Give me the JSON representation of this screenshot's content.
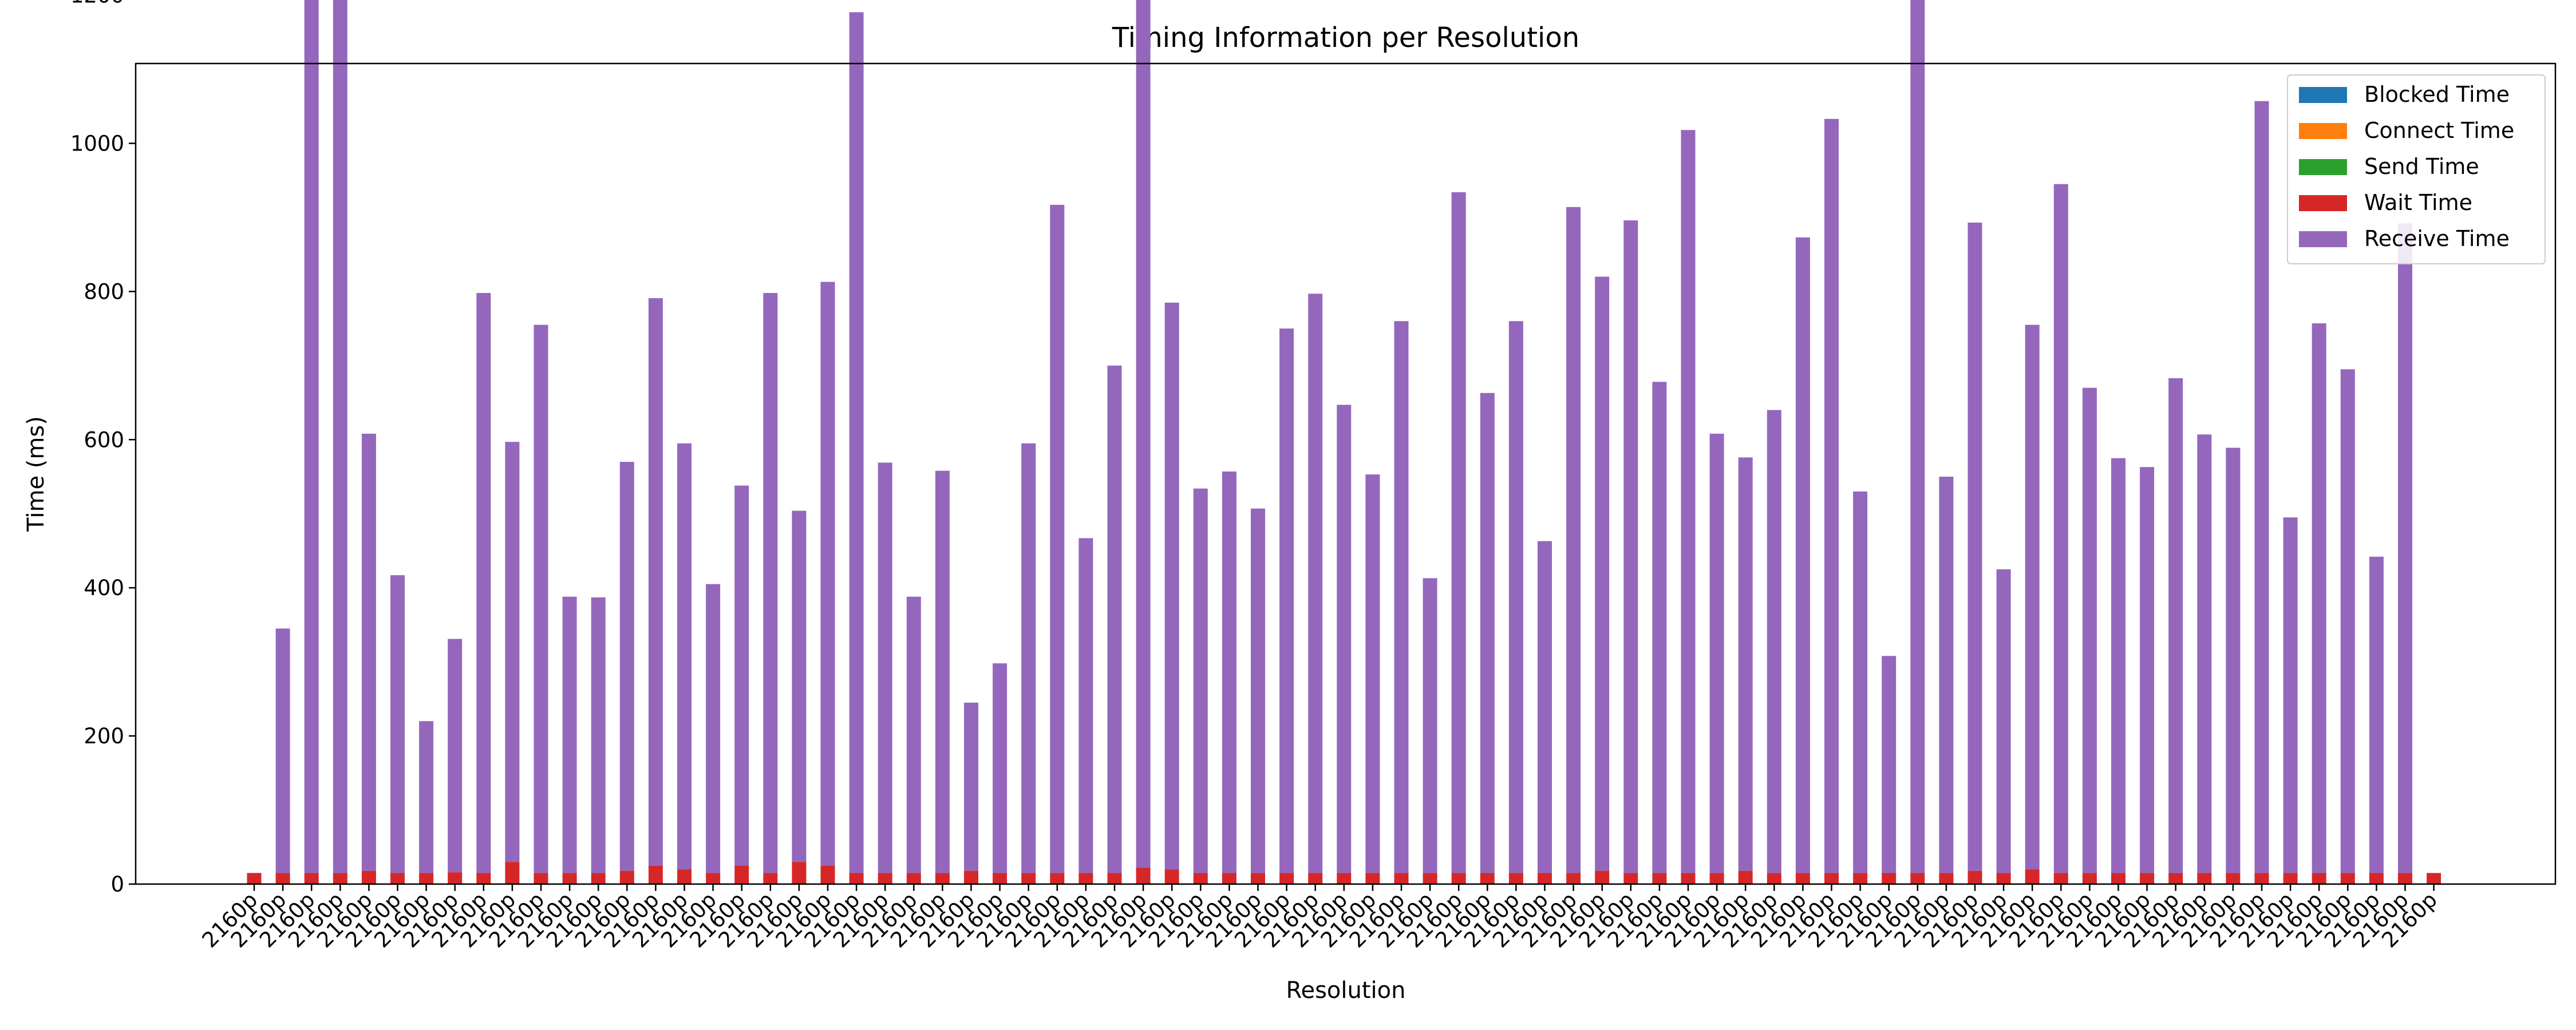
{
  "chart_data": {
    "type": "bar",
    "stacked": true,
    "title": "Timing Information per Resolution",
    "xlabel": "Resolution",
    "ylabel": "Time (ms)",
    "ylim": [
      0,
      1550
    ],
    "yticks": [
      0,
      200,
      400,
      600,
      800,
      1000,
      1200,
      1400
    ],
    "legend_position": "top-right",
    "grid": false,
    "categories": [
      "2160p",
      "2160p",
      "2160p",
      "2160p",
      "2160p",
      "2160p",
      "2160p",
      "2160p",
      "2160p",
      "2160p",
      "2160p",
      "2160p",
      "2160p",
      "2160p",
      "2160p",
      "2160p",
      "2160p",
      "2160p",
      "2160p",
      "2160p",
      "2160p",
      "2160p",
      "2160p",
      "2160p",
      "2160p",
      "2160p",
      "2160p",
      "2160p",
      "2160p",
      "2160p",
      "2160p",
      "2160p",
      "2160p",
      "2160p",
      "2160p",
      "2160p",
      "2160p",
      "2160p",
      "2160p",
      "2160p",
      "2160p",
      "2160p",
      "2160p",
      "2160p",
      "2160p",
      "2160p",
      "2160p",
      "2160p",
      "2160p",
      "2160p",
      "2160p",
      "2160p",
      "2160p",
      "2160p",
      "2160p",
      "2160p",
      "2160p",
      "2160p",
      "2160p",
      "2160p",
      "2160p",
      "2160p",
      "2160p",
      "2160p",
      "2160p",
      "2160p",
      "2160p",
      "2160p",
      "2160p",
      "2160p",
      "2160p",
      "2160p",
      "2160p",
      "2160p",
      "2160p",
      "2160p",
      "2160p"
    ],
    "series": [
      {
        "name": "Blocked Time",
        "color": "#1f77b4",
        "values": [
          0,
          0,
          0,
          0,
          0,
          0,
          0,
          0,
          0,
          0,
          0,
          0,
          0,
          0,
          0,
          0,
          0,
          0,
          0,
          0,
          0,
          0,
          0,
          0,
          0,
          0,
          0,
          0,
          0,
          0,
          0,
          0,
          0,
          0,
          0,
          0,
          0,
          0,
          0,
          0,
          0,
          0,
          0,
          0,
          0,
          0,
          0,
          0,
          0,
          0,
          0,
          0,
          0,
          0,
          0,
          0,
          0,
          0,
          0,
          0,
          0,
          0,
          0,
          0,
          0,
          0,
          0,
          0,
          0,
          0,
          0,
          0,
          0,
          0,
          0,
          0,
          0
        ]
      },
      {
        "name": "Connect Time",
        "color": "#ff7f0e",
        "values": [
          0,
          0,
          0,
          0,
          0,
          0,
          0,
          0,
          0,
          0,
          0,
          0,
          0,
          0,
          0,
          0,
          0,
          0,
          0,
          0,
          0,
          0,
          0,
          0,
          0,
          0,
          0,
          0,
          0,
          0,
          0,
          0,
          0,
          0,
          0,
          0,
          0,
          0,
          0,
          0,
          0,
          0,
          0,
          0,
          0,
          0,
          0,
          0,
          0,
          0,
          0,
          0,
          0,
          0,
          0,
          0,
          0,
          0,
          0,
          0,
          0,
          0,
          0,
          0,
          0,
          0,
          0,
          0,
          0,
          0,
          0,
          0,
          0,
          0,
          0,
          0,
          0
        ]
      },
      {
        "name": "Send Time",
        "color": "#2ca02c",
        "values": [
          0,
          0,
          0,
          0,
          0,
          0,
          0,
          0,
          0,
          0,
          0,
          0,
          0,
          0,
          0,
          0,
          0,
          0,
          0,
          0,
          0,
          0,
          0,
          0,
          0,
          0,
          0,
          0,
          0,
          0,
          0,
          0,
          0,
          0,
          0,
          0,
          0,
          0,
          0,
          0,
          0,
          0,
          0,
          0,
          0,
          0,
          0,
          0,
          0,
          0,
          0,
          0,
          0,
          0,
          0,
          0,
          0,
          0,
          0,
          0,
          0,
          0,
          0,
          0,
          0,
          0,
          0,
          0,
          0,
          0,
          0,
          0,
          0,
          0,
          0,
          0,
          0
        ]
      },
      {
        "name": "Wait Time",
        "color": "#d62728",
        "values": [
          15,
          15,
          15,
          15,
          18,
          15,
          15,
          16,
          15,
          30,
          15,
          15,
          15,
          18,
          25,
          20,
          15,
          25,
          15,
          30,
          25,
          15,
          15,
          15,
          15,
          18,
          15,
          15,
          15,
          15,
          15,
          22,
          20,
          15,
          15,
          15,
          15,
          15,
          15,
          15,
          15,
          15,
          15,
          15,
          15,
          15,
          15,
          18,
          15,
          15,
          15,
          15,
          18,
          15,
          15,
          15,
          15,
          15,
          15,
          15,
          18,
          15,
          20,
          15,
          15,
          15,
          15,
          15,
          15,
          15,
          15,
          15,
          15,
          15,
          15,
          15,
          15
        ]
      },
      {
        "name": "Receive Time",
        "color": "#9467bd",
        "values": [
          0,
          330,
          1458,
          1285,
          590,
          402,
          205,
          315,
          783,
          567,
          740,
          373,
          372,
          552,
          766,
          575,
          390,
          513,
          783,
          474,
          788,
          1162,
          554,
          373,
          543,
          227,
          283,
          580,
          902,
          452,
          685,
          1270,
          765,
          519,
          542,
          492,
          735,
          782,
          632,
          538,
          745,
          398,
          919,
          648,
          745,
          448,
          899,
          802,
          881,
          663,
          1003,
          593,
          558,
          625,
          858,
          1018,
          515,
          293,
          1332,
          535,
          875,
          410,
          735,
          930,
          655,
          560,
          548,
          668,
          592,
          574,
          1042,
          480,
          742,
          680,
          427,
          877,
          0
        ]
      }
    ]
  }
}
